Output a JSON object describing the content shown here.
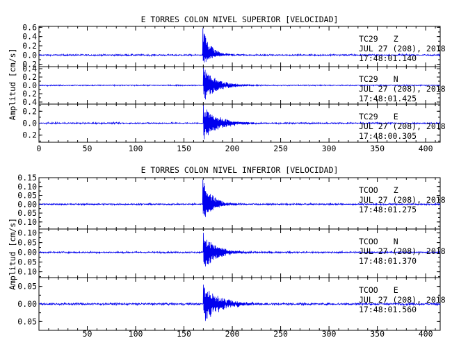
{
  "charts": [
    {
      "title": "E TORRES COLON NIVEL SUPERIOR [VELOCIDAD]",
      "ylabel": "Amplitud [cm/s]",
      "xlim": [
        0,
        415
      ],
      "x_ticks": [
        0,
        50,
        100,
        150,
        200,
        250,
        300,
        350,
        400
      ],
      "x_tick_labels": [
        "0",
        "50",
        "100",
        "150",
        "200",
        "250",
        "300",
        "350",
        "400"
      ],
      "panels": [
        {
          "station": "TC29",
          "component": "Z",
          "date_line": "JUL 27 (208), 2018",
          "time_line": "17:48:01.140",
          "ylim": [
            -0.25,
            0.62
          ],
          "y_ticks": [
            -0.2,
            0.0,
            0.2,
            0.4,
            0.6
          ],
          "y_tick_labels": [
            "0.2",
            "0.0",
            "0.2",
            "0.4",
            "0.6"
          ],
          "envelope": {
            "onset": 169.5,
            "peak_positive": 0.58,
            "peak_negative": -0.22,
            "decay_seconds": 8,
            "noise": 0.008
          }
        },
        {
          "station": "TC29",
          "component": "N",
          "date_line": "JUL 27 (208), 2018",
          "time_line": "17:48:01.425",
          "ylim": [
            -0.45,
            0.45
          ],
          "y_ticks": [
            -0.4,
            -0.2,
            0.0,
            0.2,
            0.4
          ],
          "y_tick_labels": [
            "0.4",
            "0.2",
            "0.0",
            "0.2",
            "0.4"
          ],
          "envelope": {
            "onset": 170,
            "peak_positive": 0.42,
            "peak_negative": -0.4,
            "decay_seconds": 14,
            "noise": 0.006
          }
        },
        {
          "station": "TC29",
          "component": "E",
          "date_line": "JUL 27 (208), 2018",
          "time_line": "17:48:00.305",
          "ylim": [
            -0.32,
            0.32
          ],
          "y_ticks": [
            -0.2,
            0.0,
            0.2
          ],
          "y_tick_labels": [
            "0.2",
            "0.0",
            "0.2"
          ],
          "envelope": {
            "onset": 170,
            "peak_positive": 0.3,
            "peak_negative": -0.3,
            "decay_seconds": 16,
            "noise": 0.006
          }
        }
      ]
    },
    {
      "title": "E TORRES COLON NIVEL INFERIOR [VELOCIDAD]",
      "ylabel": "Amplitud [cm/s]",
      "xlim": [
        0,
        415
      ],
      "x_ticks": [
        50,
        100,
        150,
        200,
        250,
        300,
        350,
        400
      ],
      "x_tick_labels": [
        "50",
        "100",
        "150",
        "200",
        "250",
        "300",
        "350",
        "400"
      ],
      "panels": [
        {
          "station": "TCOO",
          "component": "Z",
          "date_line": "JUL 27 (208), 2018",
          "time_line": "17:48:01.275",
          "ylim": [
            -0.14,
            0.15
          ],
          "y_ticks": [
            -0.1,
            -0.05,
            0.0,
            0.05,
            0.1,
            0.15
          ],
          "y_tick_labels": [
            "0.10",
            "0.05",
            "0.00",
            "0.05",
            "0.10",
            "0.15"
          ],
          "envelope": {
            "onset": 169.5,
            "peak_positive": 0.14,
            "peak_negative": -0.1,
            "decay_seconds": 10,
            "noise": 0.002
          }
        },
        {
          "station": "TCOO",
          "component": "N",
          "date_line": "JUL 27 (208), 2018",
          "time_line": "17:48:01.370",
          "ylim": [
            -0.13,
            0.12
          ],
          "y_ticks": [
            -0.1,
            -0.05,
            0.0,
            0.05,
            0.1
          ],
          "y_tick_labels": [
            "0.10",
            "0.05",
            "0.00",
            "0.05",
            "0.10"
          ],
          "envelope": {
            "onset": 170,
            "peak_positive": 0.1,
            "peak_negative": -0.1,
            "decay_seconds": 13,
            "noise": 0.002
          }
        },
        {
          "station": "TCOO",
          "component": "E",
          "date_line": "JUL 27 (208), 2018",
          "time_line": "17:48:01.560",
          "ylim": [
            -0.075,
            0.075
          ],
          "y_ticks": [
            -0.05,
            0.0,
            0.05
          ],
          "y_tick_labels": [
            "0.05",
            "0.00",
            "0.05"
          ],
          "envelope": {
            "onset": 170,
            "peak_positive": 0.055,
            "peak_negative": -0.055,
            "decay_seconds": 17,
            "noise": 0.0015
          }
        }
      ]
    }
  ],
  "chart_data": [
    {
      "type": "line",
      "title": "E TORRES COLON NIVEL SUPERIOR [VELOCIDAD]",
      "xlabel": "",
      "ylabel": "Amplitud [cm/s]",
      "xlim": [
        0,
        415
      ],
      "grid": false,
      "series": [
        {
          "name": "TC29 Z",
          "ylim": [
            -0.25,
            0.62
          ],
          "onset_x": 169.5,
          "max_y": 0.58,
          "min_y": -0.22
        },
        {
          "name": "TC29 N",
          "ylim": [
            -0.45,
            0.45
          ],
          "onset_x": 170,
          "max_y": 0.42,
          "min_y": -0.4
        },
        {
          "name": "TC29 E",
          "ylim": [
            -0.32,
            0.32
          ],
          "onset_x": 170,
          "max_y": 0.3,
          "min_y": -0.3
        }
      ]
    },
    {
      "type": "line",
      "title": "E TORRES COLON NIVEL INFERIOR [VELOCIDAD]",
      "xlabel": "",
      "ylabel": "Amplitud [cm/s]",
      "xlim": [
        0,
        415
      ],
      "grid": false,
      "series": [
        {
          "name": "TCOO Z",
          "ylim": [
            -0.14,
            0.15
          ],
          "onset_x": 169.5,
          "max_y": 0.14,
          "min_y": -0.1
        },
        {
          "name": "TCOO N",
          "ylim": [
            -0.13,
            0.12
          ],
          "onset_x": 170,
          "max_y": 0.1,
          "min_y": -0.1
        },
        {
          "name": "TCOO E",
          "ylim": [
            -0.075,
            0.075
          ],
          "onset_x": 170,
          "max_y": 0.055,
          "min_y": -0.055
        }
      ]
    }
  ],
  "colors": {
    "trace": "#0000ee",
    "axis": "#000000",
    "background": "#ffffff"
  }
}
